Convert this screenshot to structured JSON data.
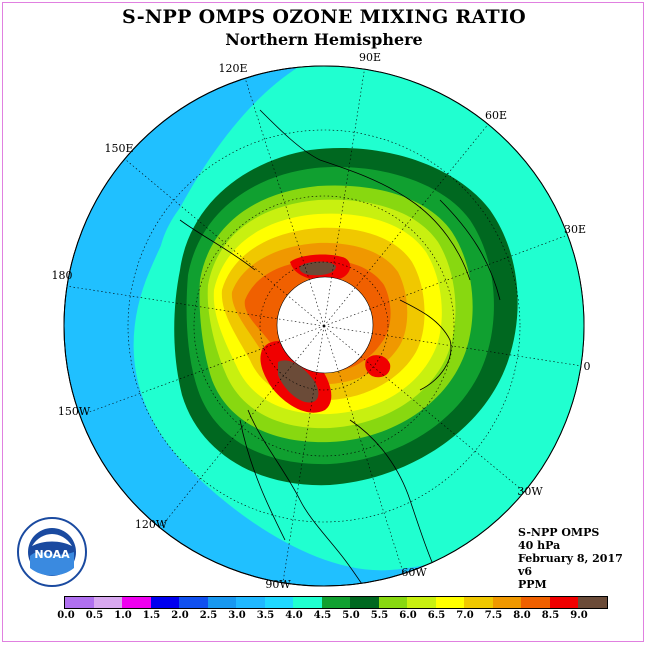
{
  "header": {
    "title": "S-NPP OMPS OZONE MIXING RATIO",
    "subtitle": "Northern Hemisphere"
  },
  "map": {
    "projection": "north polar stereographic",
    "longitude_labels": {
      "lon_90e": "90E",
      "lon_60e": "60E",
      "lon_30e": "30E",
      "lon_0": "0",
      "lon_30w": "30W",
      "lon_60w": "60W",
      "lon_90w": "90W",
      "lon_120w": "120W",
      "lon_150w": "150W",
      "lon_180": "180",
      "lon_150e": "150E",
      "lon_120e": "120E"
    },
    "colors": {
      "ocean_outer": "#20c0ff",
      "brown_max": "#6b4b38",
      "polar_gap": "#ffffff"
    }
  },
  "info": {
    "instrument": "S-NPP OMPS",
    "level": "40 hPa",
    "date": "February 8, 2017",
    "version": "v6",
    "units": "PPM"
  },
  "logo": {
    "name": "NOAA"
  },
  "colorbar": {
    "ticks": [
      "0.0",
      "0.5",
      "1.0",
      "1.5",
      "2.0",
      "2.5",
      "3.0",
      "3.5",
      "4.0",
      "4.5",
      "5.0",
      "5.5",
      "6.0",
      "6.5",
      "7.0",
      "7.5",
      "8.0",
      "8.5",
      "9.0"
    ],
    "colors": [
      "#b070f0",
      "#d8a8f0",
      "#f000f0",
      "#0000f0",
      "#1050f0",
      "#1898f0",
      "#20b8ff",
      "#20d8ff",
      "#20ffd0",
      "#10a030",
      "#006820",
      "#88d810",
      "#c8f010",
      "#ffff00",
      "#f0c800",
      "#f09800",
      "#f06000",
      "#f00000",
      "#6b4b38"
    ]
  }
}
